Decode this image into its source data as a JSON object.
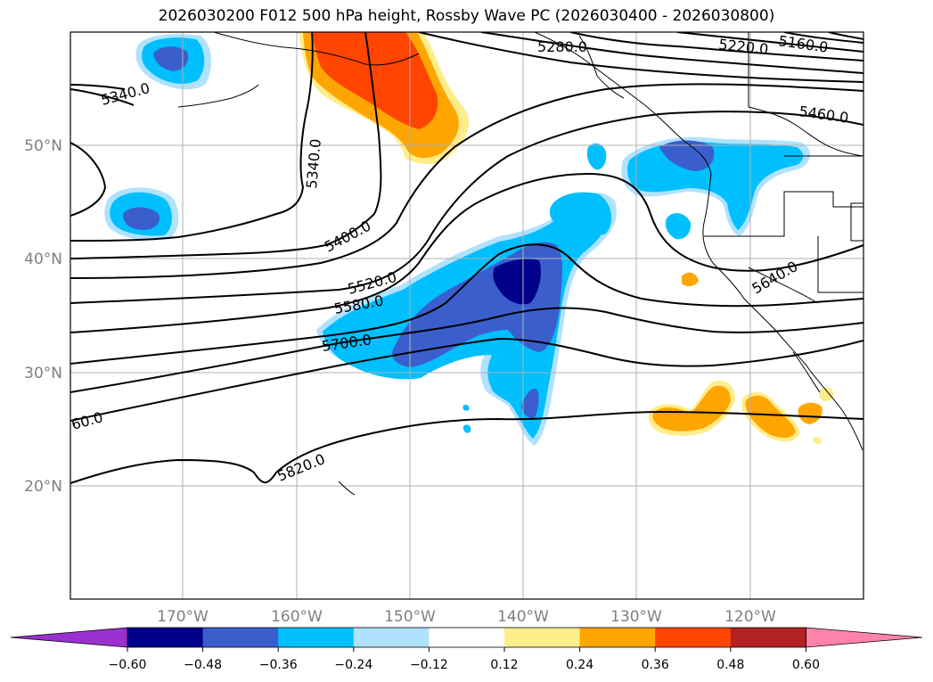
{
  "title": "2026030200 F012 500 hPa height, Rossby Wave PC (2026030400 - 2026030800)",
  "lat_labels": [
    "50°N",
    "40°N",
    "30°N",
    "20°N"
  ],
  "lon_labels": [
    "170°W",
    "160°W",
    "150°W",
    "140°W",
    "130°W",
    "120°W"
  ],
  "contour_labels": [
    "5340.0",
    "5340.0",
    "5400.0",
    "5520.0",
    "5580.0",
    "5700.0",
    "60.0",
    "5820.0",
    "5280.0",
    "5220.0",
    "5160.0",
    "5460.0",
    "5640.0"
  ],
  "colorbar": {
    "tick_labels": [
      "−0.60",
      "−0.48",
      "−0.36",
      "−0.24",
      "−0.12",
      "0.12",
      "0.24",
      "0.36",
      "0.48",
      "0.60"
    ],
    "colors": [
      "#9b30d0",
      "#00008b",
      "#3a5fcd",
      "#00bfff",
      "#b0e2ff",
      "#ffffff",
      "#ffec8b",
      "#ffa500",
      "#ff4500",
      "#b22222",
      "#ff82ab"
    ]
  },
  "colors": {
    "strong_neg": "#00008b",
    "mid_neg": "#3a5fcd",
    "neg": "#00bfff",
    "weak_neg": "#b0e2ff",
    "weak_pos": "#ffec8b",
    "pos": "#ffa500",
    "mid_pos": "#ff4500",
    "grid": "#b0b0b0"
  }
}
